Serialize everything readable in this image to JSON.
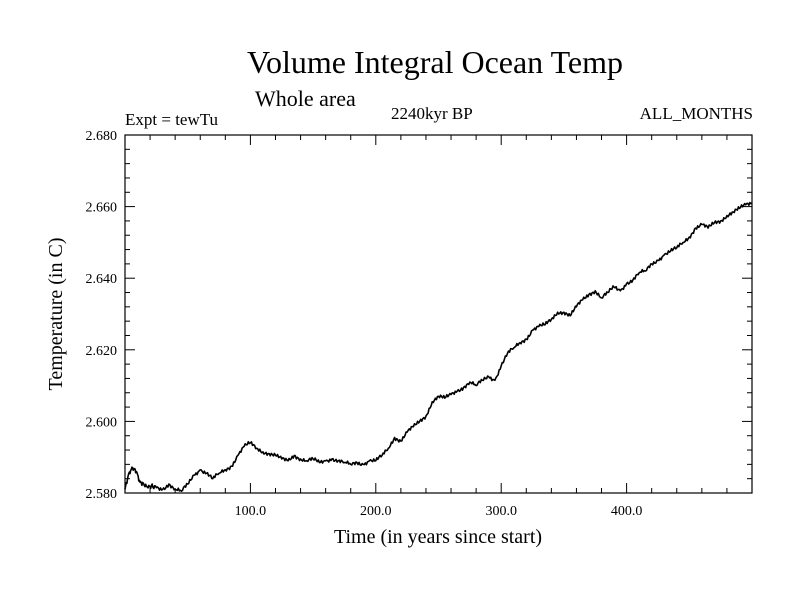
{
  "header": {
    "expt": "Expt = tewTu",
    "date": "2240kyr BP",
    "months": "ALL_MONTHS"
  },
  "chart_data": {
    "type": "line",
    "title": "Volume Integral Ocean Temp",
    "subtitle": "Whole area",
    "xlabel": "Time (in years since start)",
    "ylabel": "Temperature (in C)",
    "xlim": [
      0,
      500
    ],
    "ylim": [
      2.58,
      2.68
    ],
    "xticks": [
      100,
      200,
      300,
      400
    ],
    "xtick_labels": [
      "100.0",
      "200.0",
      "300.0",
      "400.0"
    ],
    "yticks": [
      2.58,
      2.6,
      2.62,
      2.64,
      2.66,
      2.68
    ],
    "ytick_labels": [
      "2.580",
      "2.600",
      "2.620",
      "2.640",
      "2.660",
      "2.680"
    ],
    "grid": false,
    "series": [
      {
        "name": "Volume Integral Ocean Temp",
        "x": [
          0,
          3,
          6,
          9,
          12,
          15,
          18,
          21,
          25,
          30,
          35,
          40,
          45,
          50,
          55,
          60,
          65,
          70,
          75,
          80,
          85,
          90,
          95,
          100,
          105,
          110,
          115,
          120,
          125,
          130,
          135,
          140,
          145,
          150,
          155,
          160,
          165,
          170,
          175,
          180,
          185,
          190,
          195,
          200,
          205,
          210,
          215,
          220,
          225,
          230,
          235,
          240,
          245,
          250,
          255,
          260,
          265,
          270,
          275,
          280,
          285,
          290,
          295,
          300,
          305,
          310,
          315,
          320,
          325,
          330,
          335,
          340,
          345,
          350,
          355,
          360,
          365,
          370,
          375,
          380,
          385,
          390,
          395,
          400,
          405,
          410,
          415,
          420,
          425,
          430,
          435,
          440,
          445,
          450,
          455,
          460,
          465,
          470,
          475,
          480,
          485,
          490,
          495,
          500
        ],
        "y": [
          2.581,
          2.5855,
          2.587,
          2.586,
          2.583,
          2.5825,
          2.5815,
          2.582,
          2.5815,
          2.581,
          2.5825,
          2.581,
          2.5805,
          2.5825,
          2.585,
          2.5865,
          2.5855,
          2.584,
          2.5855,
          2.5865,
          2.5875,
          2.5905,
          2.593,
          2.594,
          2.5925,
          2.5915,
          2.591,
          2.5905,
          2.5895,
          2.589,
          2.5905,
          2.5895,
          2.589,
          2.5895,
          2.5885,
          2.589,
          2.5895,
          2.589,
          2.5885,
          2.588,
          2.5885,
          2.588,
          2.589,
          2.589,
          2.5905,
          2.5925,
          2.5955,
          2.5945,
          2.597,
          2.5985,
          2.6,
          2.6015,
          2.6055,
          2.607,
          2.6065,
          2.6075,
          2.6085,
          2.6095,
          2.611,
          2.61,
          2.6115,
          2.6125,
          2.6115,
          2.6155,
          2.619,
          2.6205,
          2.622,
          2.623,
          2.6255,
          2.6265,
          2.627,
          2.6285,
          2.6305,
          2.6305,
          2.6295,
          2.632,
          2.634,
          2.6355,
          2.6365,
          2.6345,
          2.636,
          2.6375,
          2.6365,
          2.6385,
          2.6395,
          2.6415,
          2.642,
          2.644,
          2.645,
          2.6465,
          2.6475,
          2.6485,
          2.65,
          2.6515,
          2.654,
          2.655,
          2.654,
          2.6555,
          2.656,
          2.6575,
          2.6585,
          2.6595,
          2.6605,
          2.661
        ]
      }
    ]
  }
}
